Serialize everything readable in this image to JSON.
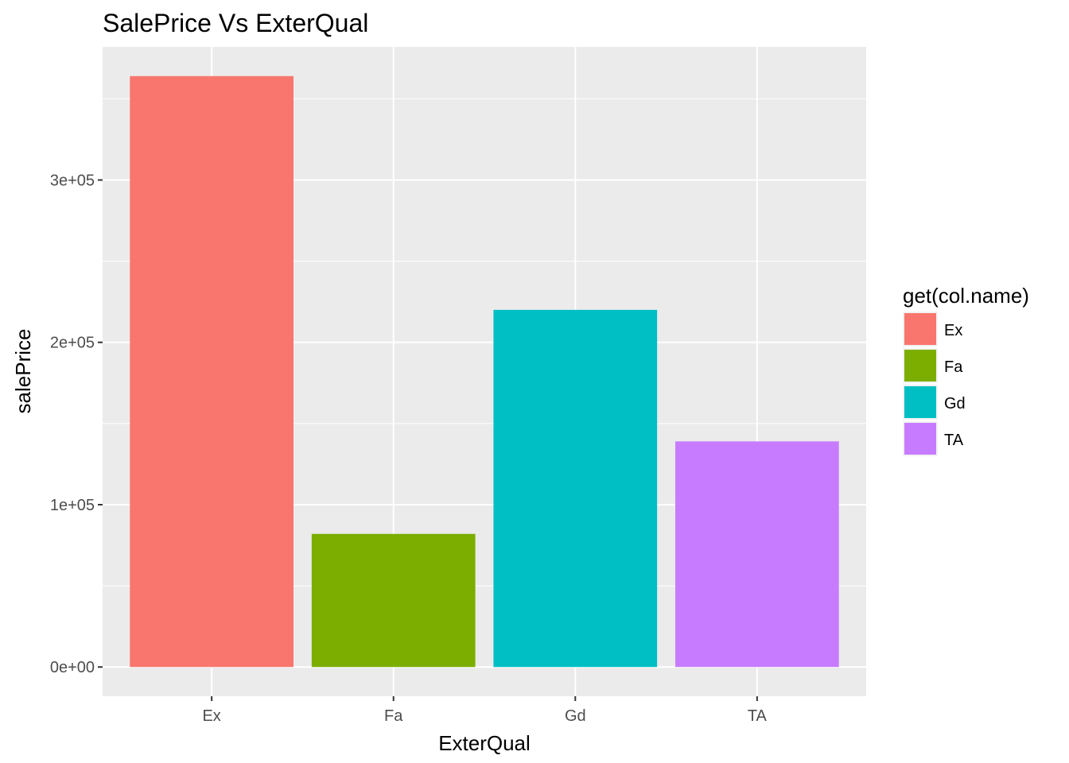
{
  "chart_data": {
    "type": "bar",
    "title": "SalePrice Vs ExterQual",
    "xlabel": "ExterQual",
    "ylabel": "salePrice",
    "categories": [
      "Ex",
      "Fa",
      "Gd",
      "TA"
    ],
    "values": [
      364000,
      82000,
      220000,
      139000
    ],
    "colors": [
      "#F8766D",
      "#7CAE00",
      "#00BFC4",
      "#C77CFF"
    ],
    "ylim": [
      -18000,
      382000
    ],
    "yticks": [
      0,
      100000,
      200000,
      300000
    ],
    "ytick_labels": [
      "0e+00",
      "1e+05",
      "2e+05",
      "3e+05"
    ],
    "grid": true,
    "panel_background": "#EBEBEB",
    "legend": {
      "title": "get(col.name)",
      "position": "right",
      "entries": [
        "Ex",
        "Fa",
        "Gd",
        "TA"
      ]
    }
  }
}
